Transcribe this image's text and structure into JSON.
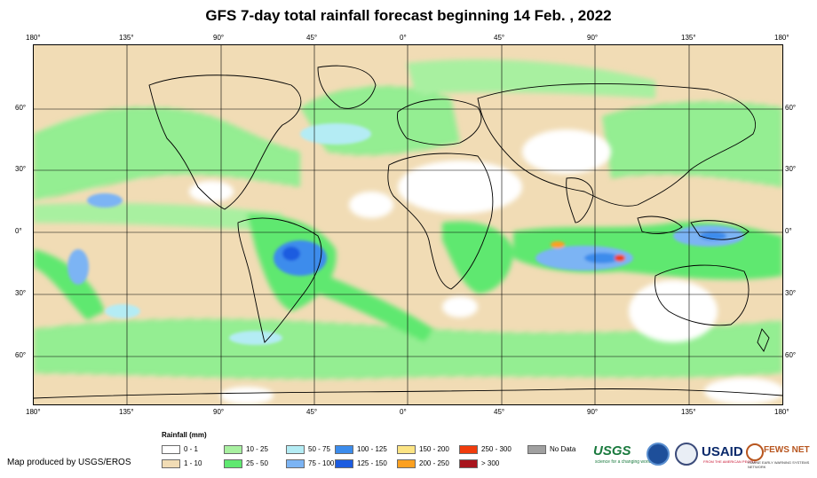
{
  "title": "GFS 7-day total rainfall forecast beginning 14 Feb. , 2022",
  "map": {
    "longitude_ticks": [
      "180°",
      "135°",
      "90°",
      "45°",
      "0°",
      "45°",
      "90°",
      "135°",
      "180°"
    ],
    "latitude_ticks": [
      "60°",
      "30°",
      "0°",
      "30°",
      "60°"
    ]
  },
  "legend": {
    "title": "Rainfall (mm)",
    "items": [
      {
        "label": "0 - 1",
        "color": "#ffffff"
      },
      {
        "label": "1 - 10",
        "color": "#f1dcb5"
      },
      {
        "label": "10 - 25",
        "color": "#a8f0a0"
      },
      {
        "label": "25 - 50",
        "color": "#5fe870"
      },
      {
        "label": "50 - 75",
        "color": "#b4ecf4"
      },
      {
        "label": "75 - 100",
        "color": "#7cb4f4"
      },
      {
        "label": "100 - 125",
        "color": "#3c8cec"
      },
      {
        "label": "125 - 150",
        "color": "#1c5ce0"
      },
      {
        "label": "150 - 200",
        "color": "#fce484"
      },
      {
        "label": "200 - 250",
        "color": "#fca020"
      },
      {
        "label": "250 - 300",
        "color": "#f03c0c"
      },
      {
        "label": "> 300",
        "color": "#a8141c"
      },
      {
        "label": "No Data",
        "color": "#a0a0a0"
      }
    ]
  },
  "credit": "Map produced by USGS/EROS",
  "logos": {
    "usgs": "USGS",
    "usgs_tagline": "science for a changing world",
    "noaa_icon": "noaa-logo-icon",
    "dhs_icon": "seal-icon",
    "usaid": "USAID",
    "usaid_tagline": "FROM THE AMERICAN PEOPLE",
    "fews": "FEWS NET",
    "fews_tagline": "FAMINE EARLY WARNING SYSTEMS NETWORK"
  }
}
